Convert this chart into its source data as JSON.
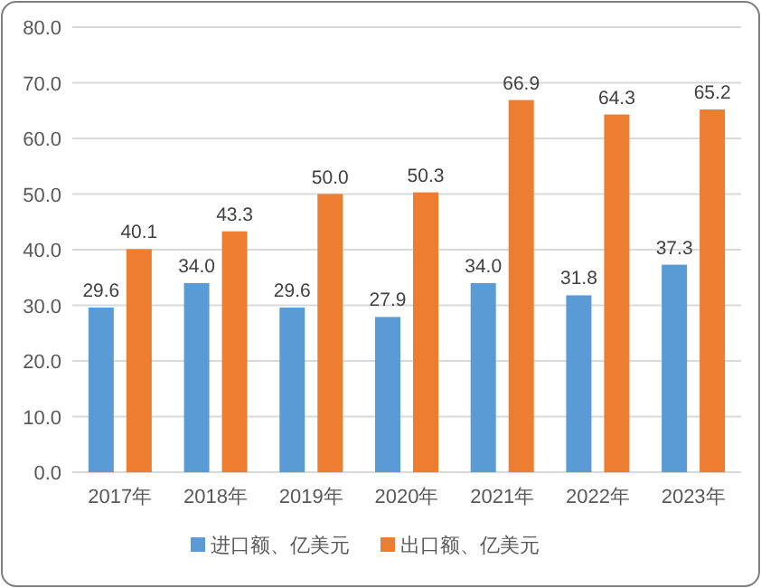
{
  "chart_data": {
    "type": "bar",
    "categories": [
      "2017年",
      "2018年",
      "2019年",
      "2020年",
      "2021年",
      "2022年",
      "2023年"
    ],
    "series": [
      {
        "name": "进口额、亿美元",
        "color": "#5b9bd5",
        "values": [
          29.6,
          34.0,
          29.6,
          27.9,
          34.0,
          31.8,
          37.3
        ],
        "value_labels": [
          "29.6",
          "34.0",
          "29.6",
          "27.9",
          "34.0",
          "31.8",
          "37.3"
        ]
      },
      {
        "name": "出口额、亿美元",
        "color": "#ed7d31",
        "values": [
          40.1,
          43.3,
          50.0,
          50.3,
          66.9,
          64.3,
          65.2
        ],
        "value_labels": [
          "40.1",
          "43.3",
          "50.0",
          "50.3",
          "66.9",
          "64.3",
          "65.2"
        ]
      }
    ],
    "ylim": [
      0,
      80
    ],
    "yticks": [
      {
        "value": 0,
        "label": "0.0"
      },
      {
        "value": 10,
        "label": "10.0"
      },
      {
        "value": 20,
        "label": "20.0"
      },
      {
        "value": 30,
        "label": "30.0"
      },
      {
        "value": 40,
        "label": "40.0"
      },
      {
        "value": 50,
        "label": "50.0"
      },
      {
        "value": 60,
        "label": "60.0"
      },
      {
        "value": 70,
        "label": "70.0"
      },
      {
        "value": 80,
        "label": "80.0"
      }
    ],
    "grid": "y",
    "legend": "bottom"
  }
}
